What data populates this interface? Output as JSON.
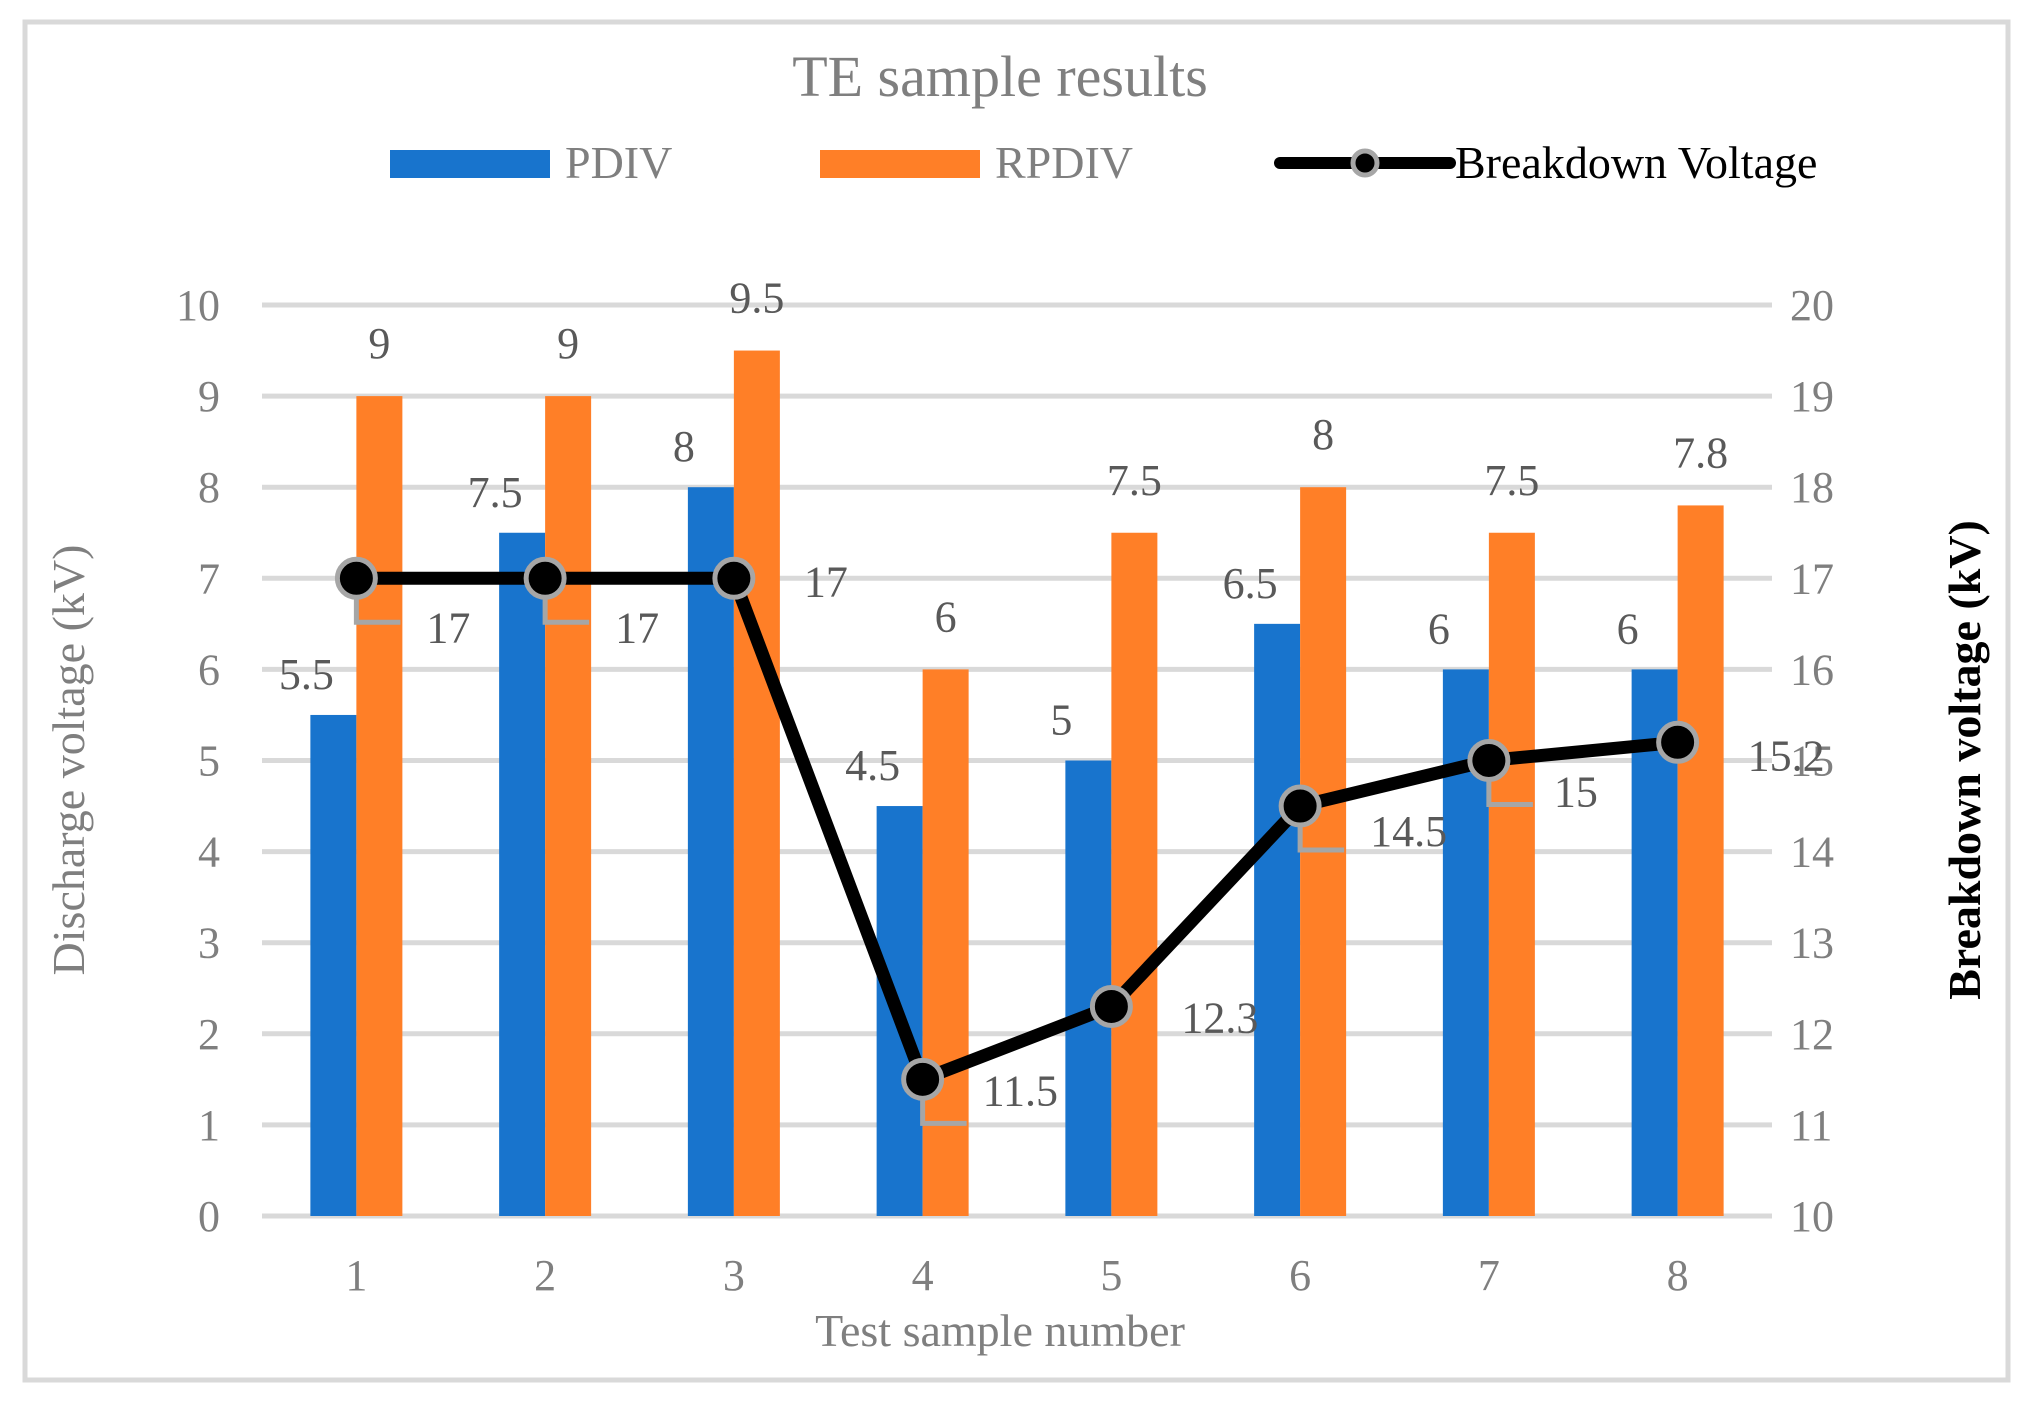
{
  "chart_data": {
    "type": "bar",
    "title": "TE sample results",
    "xlabel": "Test sample number",
    "ylabel": "Discharge voltage (kV)",
    "y2label": "Breakdown voltage (kV)",
    "categories": [
      "1",
      "2",
      "3",
      "4",
      "5",
      "6",
      "7",
      "8"
    ],
    "ylim": [
      0,
      10
    ],
    "y2lim": [
      10,
      20
    ],
    "yticks": [
      "0",
      "1",
      "2",
      "3",
      "4",
      "5",
      "6",
      "7",
      "8",
      "9",
      "10"
    ],
    "y2ticks": [
      "10",
      "11",
      "12",
      "13",
      "14",
      "15",
      "16",
      "17",
      "18",
      "19",
      "20"
    ],
    "grid": true,
    "legend_position": "top",
    "series": [
      {
        "name": "PDIV",
        "type": "bar",
        "axis": "left",
        "color": "#1874CD",
        "values": [
          5.5,
          7.5,
          8,
          4.5,
          5,
          6.5,
          6,
          6
        ],
        "labels": [
          "5.5",
          "7.5",
          "8",
          "4.5",
          "5",
          "6.5",
          "6",
          "6"
        ]
      },
      {
        "name": "RPDIV",
        "type": "bar",
        "axis": "left",
        "color": "#FF7F27",
        "values": [
          9,
          9,
          9.5,
          6,
          7.5,
          8,
          7.5,
          7.8
        ],
        "labels": [
          "9",
          "9",
          "9.5",
          "6",
          "7.5",
          "8",
          "7.5",
          "7.8"
        ]
      },
      {
        "name": "Breakdown Voltage",
        "type": "line",
        "axis": "right",
        "color": "#000000",
        "marker_edge_color": "#A6A6A6",
        "values": [
          17,
          17,
          17,
          11.5,
          12.3,
          14.5,
          15,
          15.2
        ],
        "labels": [
          "17",
          "17",
          "17",
          "11.5",
          "12.3",
          "14.5",
          "15",
          "15.2"
        ]
      }
    ]
  }
}
